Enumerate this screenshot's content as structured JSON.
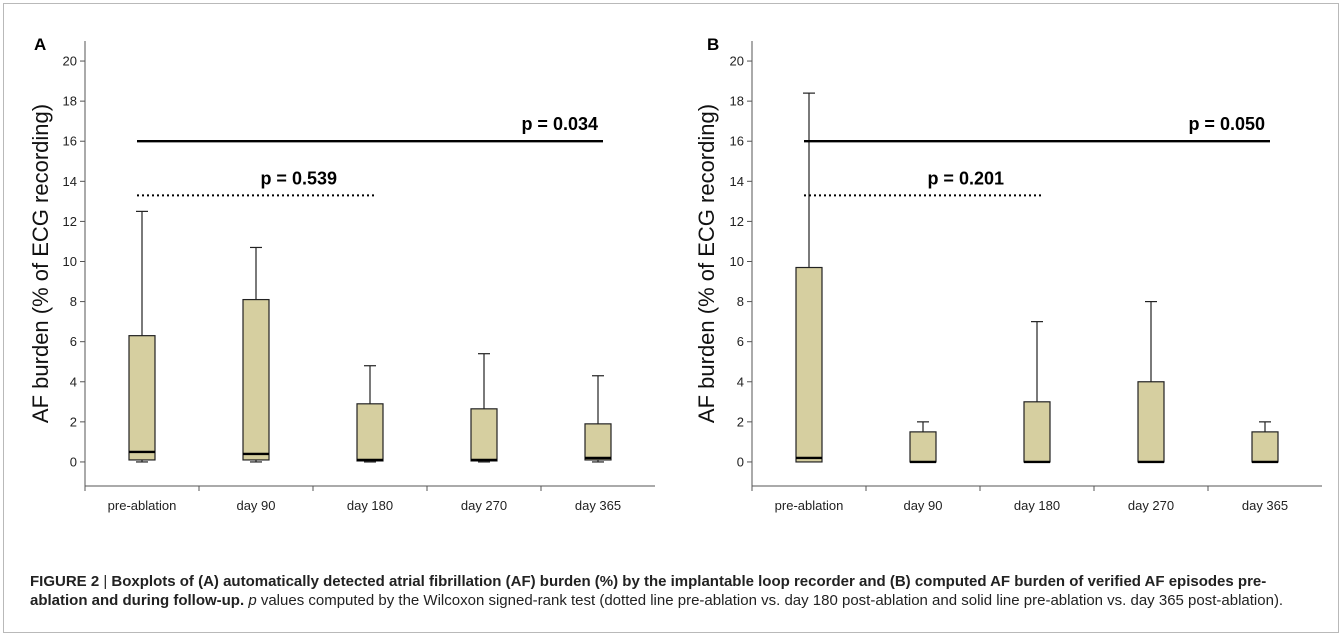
{
  "figure": {
    "caption_label": "FIGURE 2",
    "caption_sep": " | ",
    "caption_bold": "Boxplots of (A) automatically detected atrial fibrillation (AF) burden (%) by the implantable loop recorder and (B) computed AF burden of verified AF episodes pre-ablation and during follow-up",
    "caption_p": "p",
    "caption_rest": " values computed by the Wilcoxon signed-rank test (dotted line pre-ablation vs. day 180 post-ablation and solid line pre-ablation vs. day 365 post-ablation)."
  },
  "style": {
    "box_fill": "#d6cfa0",
    "stroke": "#222222"
  },
  "chart_data": [
    {
      "type": "boxplot",
      "panel": "A",
      "ylabel": "AF burden  (% of ECG recording)",
      "ylim": [
        -1.2,
        21
      ],
      "yticks": [
        0,
        2,
        4,
        6,
        8,
        10,
        12,
        14,
        16,
        18,
        20
      ],
      "categories": [
        "pre-ablation",
        "day 90",
        "day 180",
        "day 270",
        "day 365"
      ],
      "boxes": [
        {
          "min": 0,
          "q1": 0.1,
          "median": 0.5,
          "q3": 6.3,
          "max": 12.5
        },
        {
          "min": 0,
          "q1": 0.1,
          "median": 0.4,
          "q3": 8.1,
          "max": 10.7
        },
        {
          "min": 0,
          "q1": 0.05,
          "median": 0.1,
          "q3": 2.9,
          "max": 4.8
        },
        {
          "min": 0,
          "q1": 0.05,
          "median": 0.1,
          "q3": 2.65,
          "max": 5.4
        },
        {
          "min": 0,
          "q1": 0.1,
          "median": 0.2,
          "q3": 1.9,
          "max": 4.3
        }
      ],
      "annotations": [
        {
          "label": "p = 0.539",
          "style": "dotted",
          "from": "pre-ablation",
          "to": "day 180",
          "y": 13.3
        },
        {
          "label": "p = 0.034",
          "style": "solid",
          "from": "pre-ablation",
          "to": "day 365",
          "y": 16
        }
      ]
    },
    {
      "type": "boxplot",
      "panel": "B",
      "ylabel": "AF burden  (% of ECG recording)",
      "ylim": [
        -1.2,
        21
      ],
      "yticks": [
        0,
        2,
        4,
        6,
        8,
        10,
        12,
        14,
        16,
        18,
        20
      ],
      "categories": [
        "pre-ablation",
        "day 90",
        "day 180",
        "day 270",
        "day 365"
      ],
      "boxes": [
        {
          "min": 0,
          "q1": 0,
          "median": 0.2,
          "q3": 9.7,
          "max": 18.4
        },
        {
          "min": 0,
          "q1": 0,
          "median": 0,
          "q3": 1.5,
          "max": 2.0
        },
        {
          "min": 0,
          "q1": 0,
          "median": 0,
          "q3": 3.0,
          "max": 7.0
        },
        {
          "min": 0,
          "q1": 0,
          "median": 0,
          "q3": 4.0,
          "max": 8.0
        },
        {
          "min": 0,
          "q1": 0,
          "median": 0,
          "q3": 1.5,
          "max": 2.0
        }
      ],
      "annotations": [
        {
          "label": "p = 0.201",
          "style": "dotted",
          "from": "pre-ablation",
          "to": "day 180",
          "y": 13.3
        },
        {
          "label": "p = 0.050",
          "style": "solid",
          "from": "pre-ablation",
          "to": "day 365",
          "y": 16
        }
      ]
    }
  ]
}
